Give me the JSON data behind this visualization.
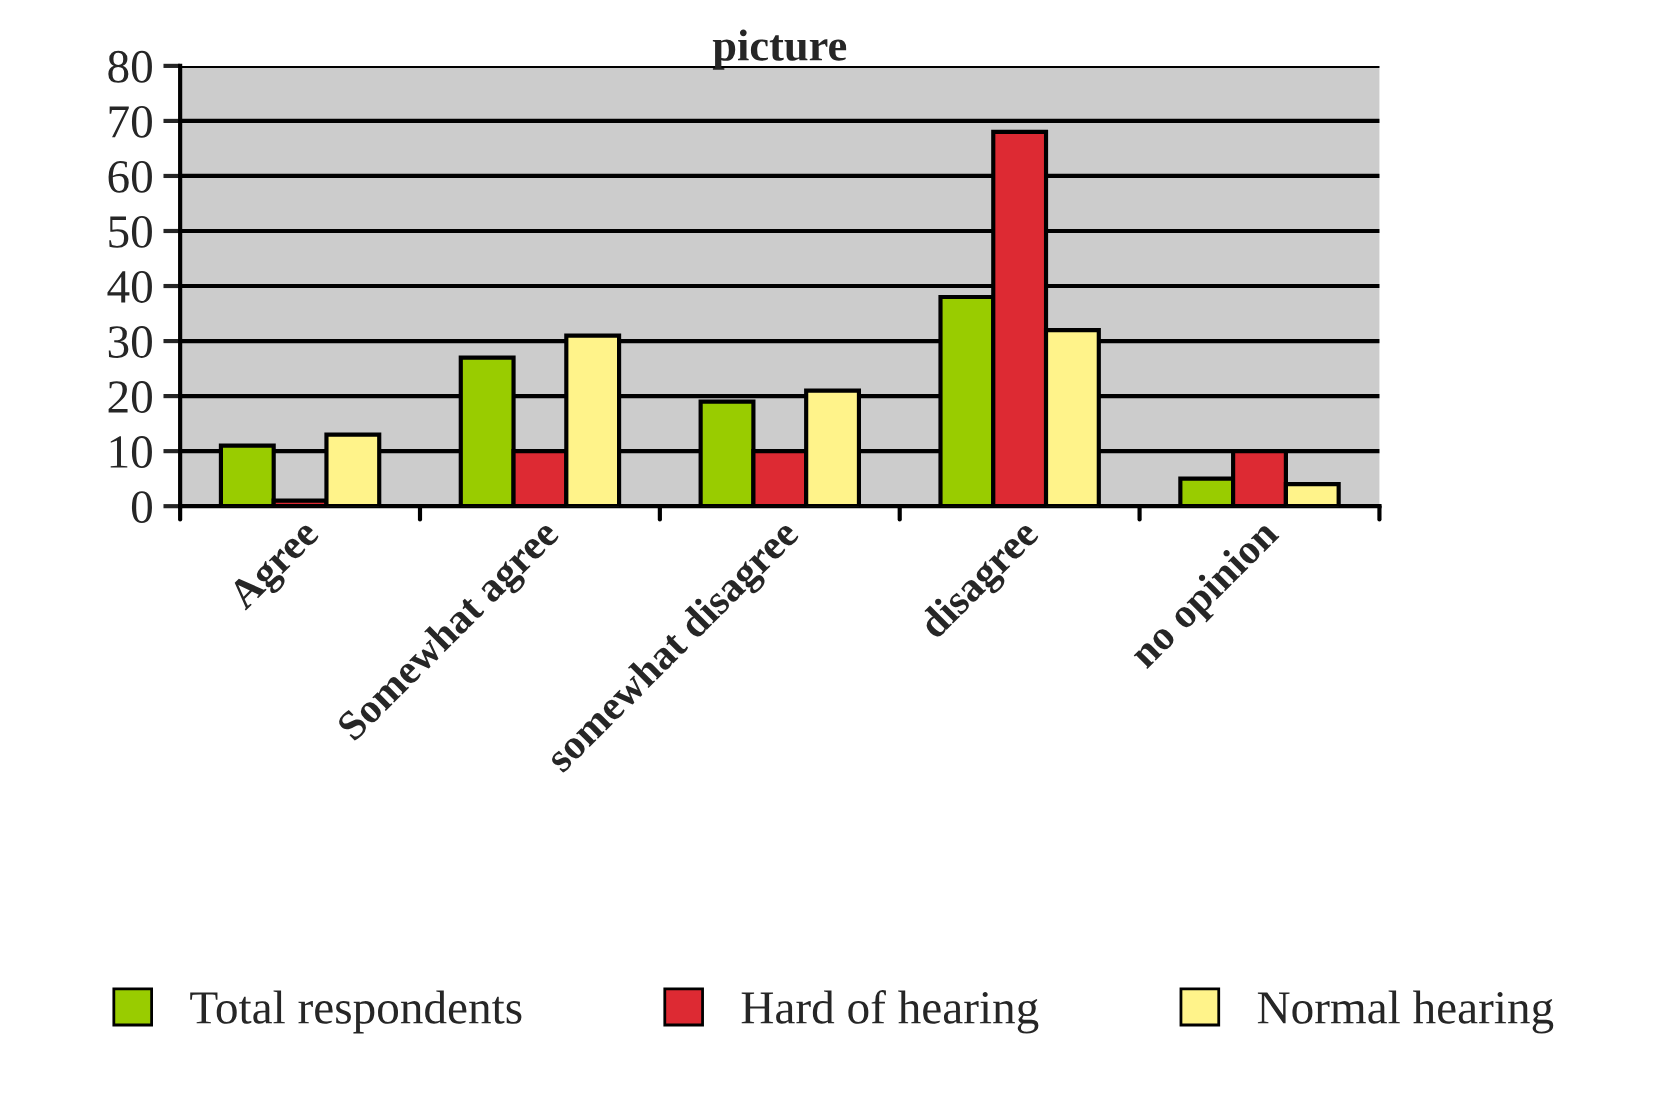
{
  "chart_data": {
    "type": "bar",
    "title": "picture",
    "categories": [
      "Agree",
      "Somewhat agree",
      "somewhat disagree",
      "disagree",
      "no opinion"
    ],
    "series": [
      {
        "name": "Total respondents",
        "color": "#99cc00",
        "values": [
          11,
          27,
          19,
          38,
          5
        ]
      },
      {
        "name": "Hard of hearing",
        "color": "#dd2a33",
        "values": [
          1,
          10,
          10,
          68,
          10
        ]
      },
      {
        "name": "Normal hearing",
        "color": "#fff38a",
        "values": [
          13,
          31,
          21,
          32,
          4
        ]
      }
    ],
    "ylim": [
      0,
      80
    ],
    "yticks": [
      0,
      10,
      20,
      30,
      40,
      50,
      60,
      70,
      80
    ],
    "grid": "y",
    "legend": "bottom"
  }
}
